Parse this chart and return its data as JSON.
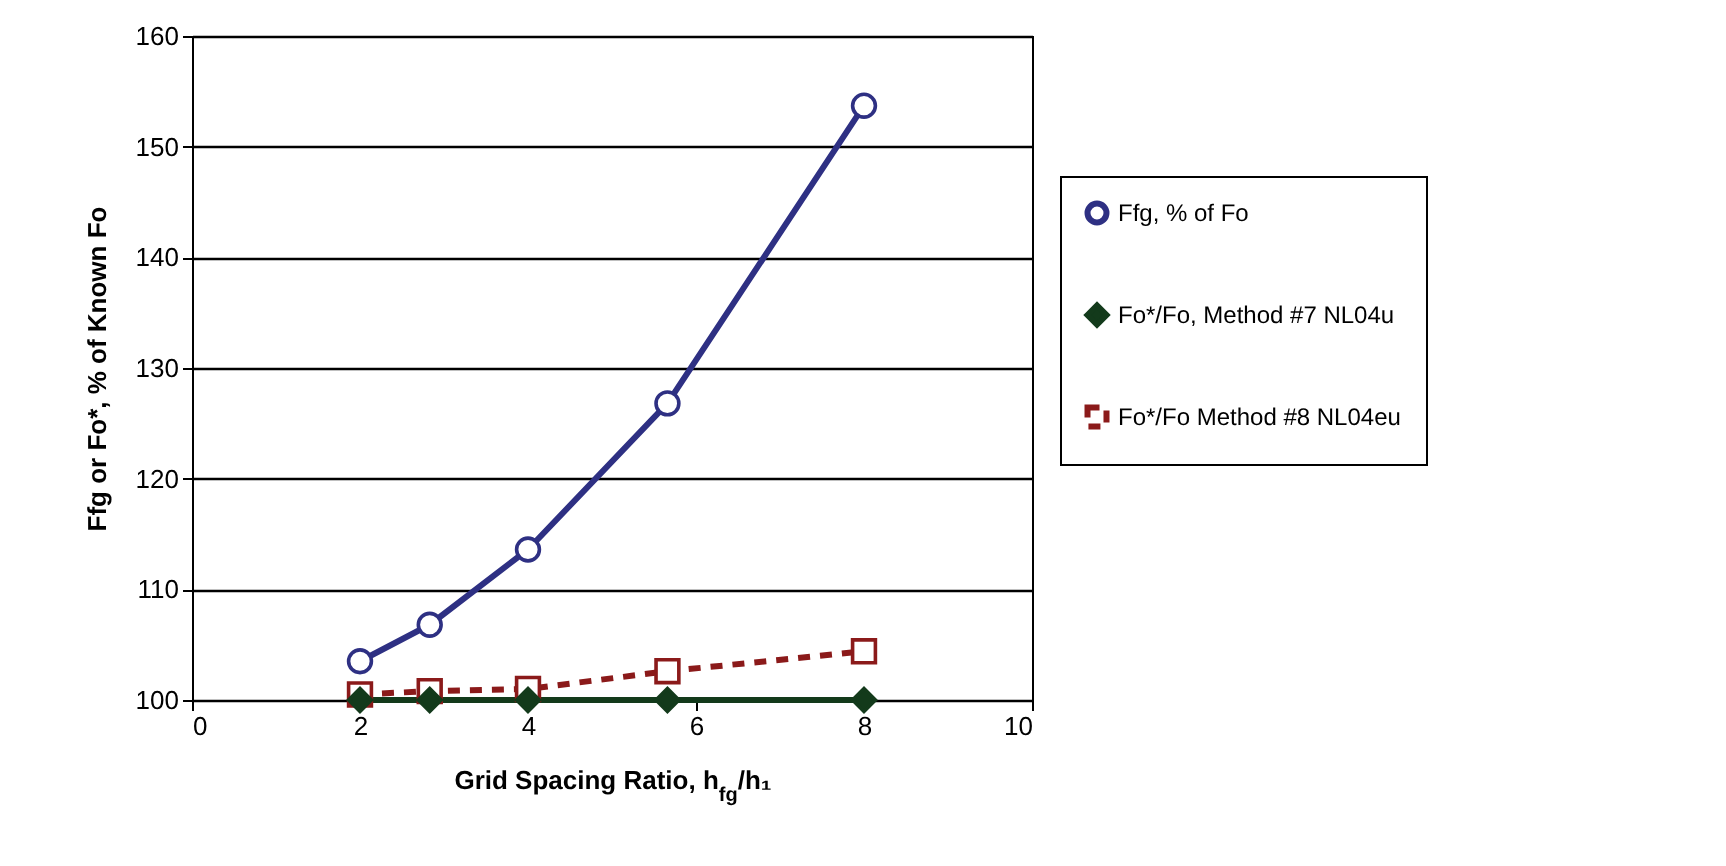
{
  "chart_data": {
    "type": "line",
    "xlabel": "Grid Spacing Ratio, h$_{fg}$/h₁",
    "ylabel": "Ffg or Fo*, % of Known Fo",
    "x": [
      2,
      2.83,
      4,
      5.66,
      8
    ],
    "series": [
      {
        "name": "Ffg, % of Fo",
        "color": "#2e3083",
        "marker": "circle",
        "line_style": "solid",
        "values": [
          103.5,
          106.8,
          113.6,
          126.8,
          153.7
        ]
      },
      {
        "name": "Fo*/Fo,  Method #7 NL04u",
        "color": "#133a1b",
        "marker": "diamond",
        "line_style": "solid",
        "values": [
          100,
          100,
          100,
          100,
          100
        ]
      },
      {
        "name": "Fo*/Fo Method #8 NL04eu",
        "color": "#8b1a1a",
        "marker": "square",
        "line_style": "dashed",
        "values": [
          100.5,
          100.8,
          101,
          102.6,
          104.4
        ]
      }
    ],
    "xlim": [
      0,
      10
    ],
    "xticks": [
      0,
      2,
      4,
      6,
      8,
      10
    ],
    "ylim": [
      100,
      160
    ],
    "yticks": [
      100,
      110,
      120,
      130,
      140,
      150,
      160
    ],
    "grid": "y",
    "legend": "right"
  }
}
